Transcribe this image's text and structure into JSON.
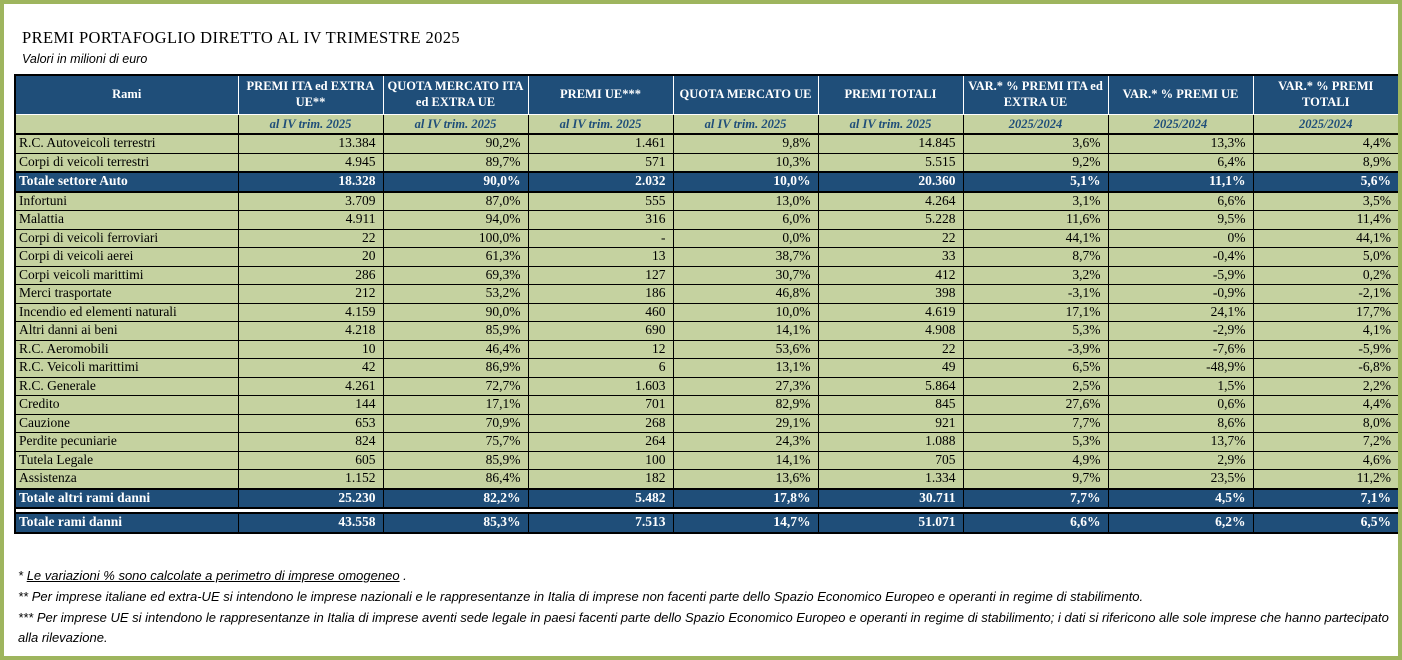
{
  "title": "PREMI PORTAFOGLIO DIRETTO AL IV TRIMESTRE 2025",
  "subtitle": "Valori in milioni di euro",
  "colors": {
    "header_bg": "#1F4E79",
    "body_bg": "#C5D2A0",
    "total_bg": "#1F4E79",
    "frame_border": "#9EB55E",
    "header_text": "#FFFFFF",
    "subheader_text": "#1F4E79"
  },
  "table": {
    "columns": [
      {
        "label": "Rami",
        "sub": ""
      },
      {
        "label": "PREMI ITA ed EXTRA UE**",
        "sub": "al IV trim. 2025"
      },
      {
        "label": "QUOTA MERCATO ITA ed EXTRA UE",
        "sub": "al IV trim. 2025"
      },
      {
        "label": "PREMI UE***",
        "sub": "al IV trim. 2025"
      },
      {
        "label": "QUOTA MERCATO UE",
        "sub": "al IV trim. 2025"
      },
      {
        "label": "PREMI TOTALI",
        "sub": "al IV trim. 2025"
      },
      {
        "label": "VAR.* % PREMI ITA ed EXTRA UE",
        "sub": "2025/2024"
      },
      {
        "label": "VAR.* % PREMI UE",
        "sub": "2025/2024"
      },
      {
        "label": "VAR.* % PREMI TOTALI",
        "sub": "2025/2024"
      }
    ],
    "rows": [
      {
        "label": "R.C. Autoveicoli terrestri",
        "type": "data",
        "values": [
          "13.384",
          "90,2%",
          "1.461",
          "9,8%",
          "14.845",
          "3,6%",
          "13,3%",
          "4,4%"
        ]
      },
      {
        "label": "Corpi di veicoli terrestri",
        "type": "data",
        "values": [
          "4.945",
          "89,7%",
          "571",
          "10,3%",
          "5.515",
          "9,2%",
          "6,4%",
          "8,9%"
        ]
      },
      {
        "label": "Totale settore Auto",
        "type": "total",
        "values": [
          "18.328",
          "90,0%",
          "2.032",
          "10,0%",
          "20.360",
          "5,1%",
          "11,1%",
          "5,6%"
        ]
      },
      {
        "label": "Infortuni",
        "type": "data",
        "values": [
          "3.709",
          "87,0%",
          "555",
          "13,0%",
          "4.264",
          "3,1%",
          "6,6%",
          "3,5%"
        ]
      },
      {
        "label": "Malattia",
        "type": "data",
        "values": [
          "4.911",
          "94,0%",
          "316",
          "6,0%",
          "5.228",
          "11,6%",
          "9,5%",
          "11,4%"
        ]
      },
      {
        "label": "Corpi di veicoli ferroviari",
        "type": "data",
        "values": [
          "22",
          "100,0%",
          "-",
          "0,0%",
          "22",
          "44,1%",
          "0%",
          "44,1%"
        ]
      },
      {
        "label": "Corpi di veicoli aerei",
        "type": "data",
        "values": [
          "20",
          "61,3%",
          "13",
          "38,7%",
          "33",
          "8,7%",
          "-0,4%",
          "5,0%"
        ]
      },
      {
        "label": "Corpi veicoli marittimi",
        "type": "data",
        "values": [
          "286",
          "69,3%",
          "127",
          "30,7%",
          "412",
          "3,2%",
          "-5,9%",
          "0,2%"
        ]
      },
      {
        "label": "Merci trasportate",
        "type": "data",
        "values": [
          "212",
          "53,2%",
          "186",
          "46,8%",
          "398",
          "-3,1%",
          "-0,9%",
          "-2,1%"
        ]
      },
      {
        "label": "Incendio ed elementi naturali",
        "type": "data",
        "values": [
          "4.159",
          "90,0%",
          "460",
          "10,0%",
          "4.619",
          "17,1%",
          "24,1%",
          "17,7%"
        ]
      },
      {
        "label": "Altri danni ai beni",
        "type": "data",
        "values": [
          "4.218",
          "85,9%",
          "690",
          "14,1%",
          "4.908",
          "5,3%",
          "-2,9%",
          "4,1%"
        ]
      },
      {
        "label": "R.C. Aeromobili",
        "type": "data",
        "values": [
          "10",
          "46,4%",
          "12",
          "53,6%",
          "22",
          "-3,9%",
          "-7,6%",
          "-5,9%"
        ]
      },
      {
        "label": "R.C. Veicoli marittimi",
        "type": "data",
        "values": [
          "42",
          "86,9%",
          "6",
          "13,1%",
          "49",
          "6,5%",
          "-48,9%",
          "-6,8%"
        ]
      },
      {
        "label": "R.C. Generale",
        "type": "data",
        "values": [
          "4.261",
          "72,7%",
          "1.603",
          "27,3%",
          "5.864",
          "2,5%",
          "1,5%",
          "2,2%"
        ]
      },
      {
        "label": "Credito",
        "type": "data",
        "values": [
          "144",
          "17,1%",
          "701",
          "82,9%",
          "845",
          "27,6%",
          "0,6%",
          "4,4%"
        ]
      },
      {
        "label": "Cauzione",
        "type": "data",
        "values": [
          "653",
          "70,9%",
          "268",
          "29,1%",
          "921",
          "7,7%",
          "8,6%",
          "8,0%"
        ]
      },
      {
        "label": "Perdite pecuniarie",
        "type": "data",
        "values": [
          "824",
          "75,7%",
          "264",
          "24,3%",
          "1.088",
          "5,3%",
          "13,7%",
          "7,2%"
        ]
      },
      {
        "label": "Tutela Legale",
        "type": "data",
        "values": [
          "605",
          "85,9%",
          "100",
          "14,1%",
          "705",
          "4,9%",
          "2,9%",
          "4,6%"
        ]
      },
      {
        "label": "Assistenza",
        "type": "data",
        "values": [
          "1.152",
          "86,4%",
          "182",
          "13,6%",
          "1.334",
          "9,7%",
          "23,5%",
          "11,2%"
        ]
      },
      {
        "label": "Totale altri rami danni",
        "type": "total",
        "values": [
          "25.230",
          "82,2%",
          "5.482",
          "17,8%",
          "30.711",
          "7,7%",
          "4,5%",
          "7,1%"
        ]
      },
      {
        "label": "Totale rami danni",
        "type": "total",
        "gap_before": true,
        "values": [
          "43.558",
          "85,3%",
          "7.513",
          "14,7%",
          "51.071",
          "6,6%",
          "6,2%",
          "6,5%"
        ]
      }
    ]
  },
  "footnotes": [
    {
      "marker": "*",
      "text": "Le variazioni % sono calcolate a perimetro di imprese omogeneo",
      "suffix": " .",
      "underline": true
    },
    {
      "marker": "**",
      "text": "Per imprese italiane ed extra-UE si intendono le imprese nazionali e le rappresentanze in Italia di imprese non facenti parte dello Spazio Economico Europeo e operanti in regime di stabilimento.",
      "suffix": "",
      "underline": false
    },
    {
      "marker": "***",
      "text": "Per imprese UE si intendono le rappresentanze in Italia di imprese aventi sede legale in paesi facenti parte dello Spazio Economico Europeo e operanti in regime di stabilimento; i dati si rifericono alle sole imprese che hanno partecipato alla rilevazione.",
      "suffix": "",
      "underline": false
    }
  ]
}
